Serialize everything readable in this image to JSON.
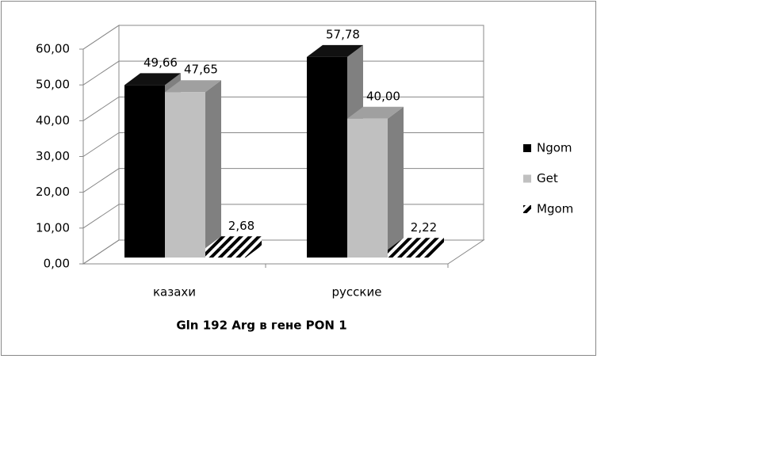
{
  "chart_data": {
    "type": "bar3d",
    "x_label": "Gln 192 Arg  в гене PON 1",
    "categories": [
      "казахи",
      "русские"
    ],
    "series": [
      {
        "name": "Ngom",
        "color": "#000000",
        "values": [
          49.66,
          57.78
        ],
        "value_labels": [
          "49,66",
          "57,78"
        ]
      },
      {
        "name": "Get",
        "color": "#c0c0c0",
        "values": [
          47.65,
          40.0
        ],
        "value_labels": [
          "47,65",
          "40,00"
        ]
      },
      {
        "name": "Mgom",
        "color": "#000000",
        "hatch": true,
        "values": [
          2.68,
          2.22
        ],
        "value_labels": [
          "2,68",
          "2,22"
        ]
      }
    ],
    "ylim": [
      0,
      60
    ],
    "yticks": [
      {
        "value": 0,
        "label": "0,00"
      },
      {
        "value": 10,
        "label": "10,00"
      },
      {
        "value": 20,
        "label": "20,00"
      },
      {
        "value": 30,
        "label": "30,00"
      },
      {
        "value": 40,
        "label": "40,00"
      },
      {
        "value": 50,
        "label": "50,00"
      },
      {
        "value": 60,
        "label": "60,00"
      }
    ],
    "grid": true,
    "legend": "right"
  }
}
